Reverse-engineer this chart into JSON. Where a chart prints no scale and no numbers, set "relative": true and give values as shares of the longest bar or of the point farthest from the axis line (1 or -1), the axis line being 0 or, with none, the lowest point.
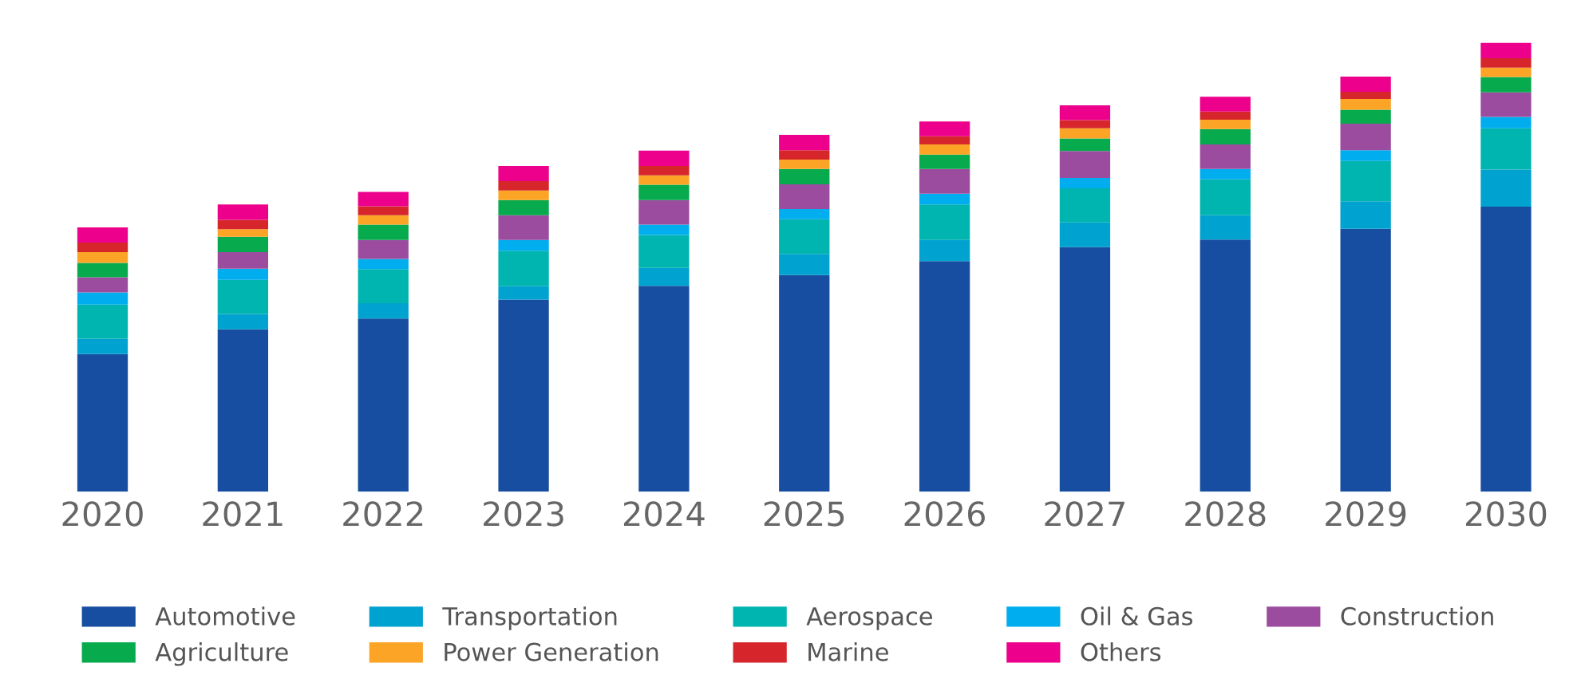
{
  "chart_data": {
    "type": "bar",
    "stacked": true,
    "relative": true,
    "legend": "bottom",
    "grid": false,
    "categories": [
      "2020",
      "2021",
      "2022",
      "2023",
      "2024",
      "2025",
      "2026",
      "2027",
      "2028",
      "2029",
      "2030"
    ],
    "series": [
      {
        "name": "Automotive",
        "color": "#174ea1",
        "values": [
          0.307,
          0.362,
          0.386,
          0.428,
          0.459,
          0.483,
          0.514,
          0.545,
          0.562,
          0.586,
          0.635
        ]
      },
      {
        "name": "Transportation",
        "color": "#00a2cf",
        "values": [
          0.034,
          0.034,
          0.034,
          0.03,
          0.04,
          0.047,
          0.047,
          0.055,
          0.054,
          0.061,
          0.083
        ]
      },
      {
        "name": "Aerospace",
        "color": "#00b4b0",
        "values": [
          0.076,
          0.076,
          0.076,
          0.079,
          0.073,
          0.077,
          0.079,
          0.076,
          0.08,
          0.09,
          0.092
        ]
      },
      {
        "name": "Oil & Gas",
        "color": "#00adef",
        "values": [
          0.027,
          0.025,
          0.023,
          0.024,
          0.023,
          0.023,
          0.024,
          0.023,
          0.023,
          0.024,
          0.025
        ]
      },
      {
        "name": "Construction",
        "color": "#9b4c9f",
        "values": [
          0.034,
          0.037,
          0.042,
          0.055,
          0.055,
          0.055,
          0.055,
          0.06,
          0.055,
          0.059,
          0.055
        ]
      },
      {
        "name": "Agriculture",
        "color": "#07aa4d",
        "values": [
          0.032,
          0.034,
          0.034,
          0.034,
          0.034,
          0.034,
          0.032,
          0.028,
          0.034,
          0.031,
          0.034
        ]
      },
      {
        "name": "Power Generation",
        "color": "#fba426",
        "values": [
          0.024,
          0.017,
          0.021,
          0.021,
          0.021,
          0.021,
          0.023,
          0.023,
          0.021,
          0.024,
          0.021
        ]
      },
      {
        "name": "Marine",
        "color": "#d6262b",
        "values": [
          0.021,
          0.021,
          0.02,
          0.021,
          0.021,
          0.021,
          0.018,
          0.018,
          0.018,
          0.016,
          0.021
        ]
      },
      {
        "name": "Others",
        "color": "#ec008c",
        "values": [
          0.034,
          0.034,
          0.032,
          0.034,
          0.034,
          0.034,
          0.033,
          0.033,
          0.033,
          0.034,
          0.034
        ]
      }
    ]
  }
}
